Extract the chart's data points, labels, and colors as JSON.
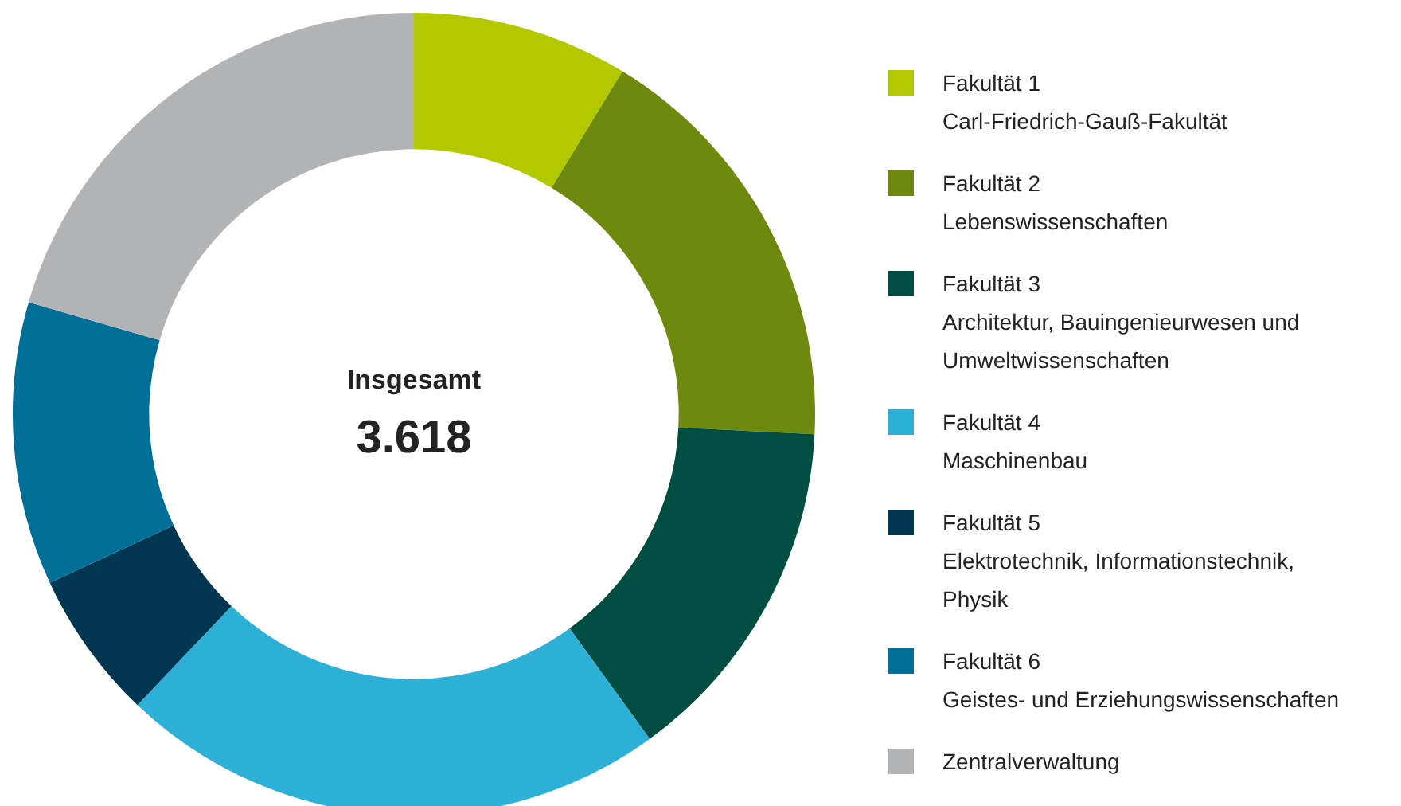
{
  "chart_data": {
    "type": "donut",
    "categories": [
      "Fakultät 1\nCarl-Friedrich-Gauß-Fakultät",
      "Fakultät 2\nLebenswissenschaften",
      "Fakultät 3\nArchitektur, Bauingenieurwesen und Umweltwissenschaften",
      "Fakultät 4\nMaschinenbau",
      "Fakultät 5\nElektrotechnik, Informationstechnik, Physik",
      "Fakultät 6\nGeistes- und Erziehungswissenschaften",
      "Zentralverwaltung"
    ],
    "values": [
      8.7,
      17.1,
      14.2,
      22.1,
      6.0,
      11.4,
      20.5
    ],
    "colors": [
      "#b2c900",
      "#6e8a0e",
      "#004e42",
      "#2cb0d8",
      "#00364f",
      "#006f97",
      "#b2b3b5"
    ],
    "annotations": [
      "Insgesamt",
      "3.618"
    ],
    "legend": "right"
  }
}
